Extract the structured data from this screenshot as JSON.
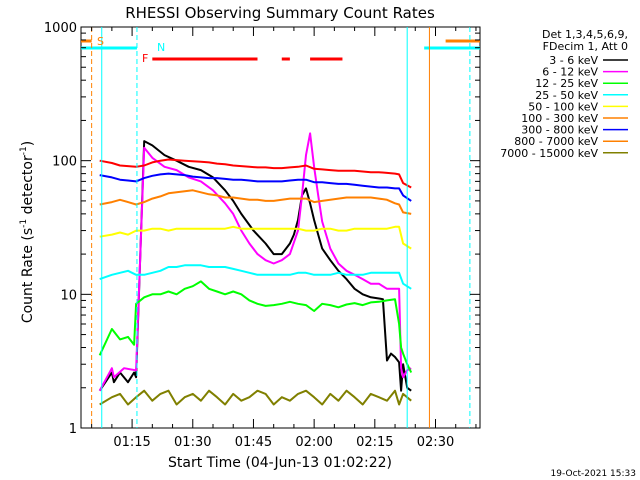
{
  "chart_data": {
    "type": "line",
    "title": "RHESSI Observing Summary Count Rates",
    "xlabel": "Start Time (04-Jun-13 01:02:22)",
    "ylabel_main": "Count Rate (s",
    "ylabel_sup1": "-1",
    "ylabel_mid": " detector",
    "ylabel_sup2": "-1",
    "ylabel_end": ")",
    "yscale": "log",
    "ylim": [
      1,
      1000
    ],
    "xlim_minutes": [
      62.37,
      161.0
    ],
    "x_ticks": [
      {
        "m": 75,
        "label": "01:15"
      },
      {
        "m": 90,
        "label": "01:30"
      },
      {
        "m": 105,
        "label": "01:45"
      },
      {
        "m": 120,
        "label": "02:00"
      },
      {
        "m": 135,
        "label": "02:15"
      },
      {
        "m": 150,
        "label": "02:30"
      }
    ],
    "y_ticks": [
      {
        "v": 1,
        "label": "1"
      },
      {
        "v": 10,
        "label": "10"
      },
      {
        "v": 100,
        "label": "100"
      },
      {
        "v": 1000,
        "label": "1000"
      }
    ],
    "legend_header": [
      "Det 1,3,4,5,6,9,",
      "FDecim 1, Att 0"
    ],
    "series": [
      {
        "name": "3 - 6 keV",
        "color": "#000000",
        "x": [
          67,
          70,
          70.5,
          72,
          74,
          75.5,
          76,
          78,
          80,
          83,
          86,
          89,
          92,
          95,
          98,
          100,
          102,
          105,
          108,
          110,
          112,
          114,
          115,
          116,
          117,
          118,
          119,
          120,
          121,
          122,
          124,
          126,
          128,
          130,
          132,
          134,
          136,
          137,
          138,
          139,
          140,
          141,
          141.5,
          142,
          143,
          144
        ],
        "y": [
          1.9,
          2.6,
          2.2,
          2.6,
          2.2,
          2.6,
          2.4,
          140,
          130,
          110,
          100,
          90,
          85,
          75,
          60,
          50,
          40,
          30,
          24,
          20,
          20,
          24,
          28,
          36,
          55,
          62,
          48,
          36,
          28,
          22,
          18,
          15,
          13,
          11,
          10,
          9.5,
          9.3,
          9.2,
          3.2,
          3.6,
          3.4,
          3.1,
          1.9,
          3.0,
          2.0,
          1.9
        ]
      },
      {
        "name": "6 - 12 keV",
        "color": "#ff00ff",
        "x": [
          67,
          70,
          70.5,
          73,
          76,
          78,
          80,
          83,
          86,
          89,
          92,
          95,
          98,
          100,
          102,
          104,
          106,
          108,
          110,
          112,
          114,
          116,
          117,
          118,
          119,
          120,
          121,
          122,
          124,
          126,
          128,
          130,
          132,
          134,
          136,
          138,
          140,
          141,
          141.5,
          142,
          143,
          144
        ],
        "y": [
          1.9,
          2.8,
          2.4,
          2.8,
          2.7,
          125,
          105,
          90,
          85,
          75,
          70,
          60,
          48,
          40,
          30,
          24,
          20,
          18,
          17,
          18,
          20,
          30,
          55,
          110,
          160,
          90,
          55,
          35,
          22,
          17,
          15,
          14,
          13,
          12,
          12,
          11,
          11,
          11,
          2.8,
          2.4,
          2.7,
          2.8
        ]
      },
      {
        "name": "12 - 25 keV",
        "color": "#00ff00",
        "x": [
          67,
          70,
          72,
          74,
          75.5,
          76,
          78,
          80,
          82,
          84,
          86,
          88,
          90,
          92,
          94,
          96,
          98,
          100,
          102,
          104,
          106,
          108,
          110,
          112,
          114,
          116,
          118,
          120,
          122,
          124,
          126,
          128,
          130,
          132,
          134,
          136,
          138,
          140,
          141,
          141.5,
          142,
          143,
          144
        ],
        "y": [
          3.5,
          5.5,
          4.6,
          4.8,
          4.2,
          8.5,
          9.5,
          10,
          10,
          10.5,
          10,
          11,
          11.5,
          12.5,
          11,
          10.5,
          10,
          10.5,
          10,
          9,
          8.5,
          8.2,
          8.3,
          8.5,
          8.8,
          8.5,
          8.3,
          7.5,
          8.5,
          8.3,
          8,
          8.4,
          8.6,
          8.3,
          8.7,
          8.8,
          9,
          9.2,
          6,
          4,
          3.6,
          3.0,
          2.6
        ]
      },
      {
        "name": "25 - 50 keV",
        "color": "#00ffff",
        "x": [
          67,
          70,
          72,
          74,
          76,
          78,
          80,
          82,
          84,
          86,
          88,
          90,
          92,
          94,
          96,
          98,
          100,
          102,
          104,
          106,
          108,
          110,
          112,
          114,
          116,
          118,
          120,
          122,
          124,
          126,
          128,
          130,
          132,
          134,
          136,
          138,
          140,
          141,
          142,
          144
        ],
        "y": [
          13,
          14,
          14.5,
          15,
          14,
          14,
          14.5,
          15,
          16,
          16,
          16.5,
          16.5,
          16.5,
          16,
          16,
          16,
          15.5,
          15,
          14.5,
          14,
          14,
          14,
          14,
          14,
          14.5,
          14.5,
          14,
          14,
          14,
          14.5,
          14,
          14,
          14,
          14.5,
          14.5,
          14.5,
          14.5,
          14.5,
          12,
          11
        ]
      },
      {
        "name": "50 - 100 keV",
        "color": "#ffff00",
        "x": [
          67,
          70,
          72,
          74,
          76,
          78,
          80,
          82,
          84,
          86,
          88,
          90,
          92,
          94,
          96,
          98,
          100,
          102,
          104,
          106,
          108,
          110,
          112,
          114,
          116,
          118,
          120,
          122,
          124,
          126,
          128,
          130,
          132,
          134,
          136,
          138,
          140,
          141,
          142,
          144
        ],
        "y": [
          27,
          28,
          29,
          28,
          30,
          30,
          31,
          31,
          30,
          31,
          31,
          31,
          31,
          31,
          31,
          31,
          32,
          31,
          31,
          31,
          31,
          31,
          31,
          31,
          31,
          30,
          30,
          31,
          31,
          30,
          30,
          31,
          31,
          31,
          31,
          31,
          32,
          32,
          24,
          22
        ]
      },
      {
        "name": "100 - 300 keV",
        "color": "#ff8000",
        "x": [
          67,
          70,
          72,
          74,
          76,
          78,
          80,
          82,
          84,
          86,
          88,
          90,
          92,
          94,
          96,
          98,
          100,
          102,
          104,
          106,
          108,
          110,
          112,
          114,
          116,
          118,
          120,
          122,
          124,
          126,
          128,
          130,
          132,
          134,
          136,
          138,
          140,
          141,
          142,
          144
        ],
        "y": [
          47,
          49,
          51,
          49,
          47,
          49,
          52,
          54,
          57,
          58,
          59,
          60,
          58,
          56,
          55,
          53,
          53,
          52,
          51,
          51,
          50,
          50,
          51,
          52,
          52,
          52,
          49,
          50,
          51,
          52,
          53,
          53,
          53,
          53,
          52,
          51,
          48,
          47,
          41,
          40
        ]
      },
      {
        "name": "300 - 800 keV",
        "color": "#0000ff",
        "x": [
          67,
          70,
          72,
          74,
          76,
          78,
          80,
          82,
          84,
          86,
          88,
          90,
          92,
          94,
          96,
          98,
          100,
          102,
          104,
          106,
          108,
          110,
          112,
          114,
          116,
          118,
          120,
          122,
          124,
          126,
          128,
          130,
          132,
          134,
          136,
          138,
          140,
          141,
          142,
          144
        ],
        "y": [
          78,
          75,
          72,
          71,
          70,
          74,
          77,
          79,
          80,
          79,
          78,
          76,
          75,
          74,
          74,
          73,
          72,
          72,
          71,
          70,
          70,
          70,
          70,
          71,
          72,
          72,
          69,
          69,
          68,
          67,
          67,
          66,
          65,
          64,
          63,
          63,
          62,
          62,
          55,
          50
        ]
      },
      {
        "name": "800 - 7000 keV",
        "color": "#ff8000",
        "x": [],
        "y": []
      },
      {
        "name": "7000 - 15000 keV",
        "color": "#808000",
        "x": [
          67,
          70,
          72,
          74,
          76,
          78,
          80,
          82,
          84,
          86,
          88,
          90,
          92,
          94,
          96,
          98,
          100,
          102,
          104,
          106,
          108,
          110,
          112,
          114,
          116,
          118,
          120,
          122,
          124,
          126,
          128,
          130,
          132,
          134,
          136,
          138,
          140,
          141,
          142,
          144
        ],
        "y": [
          1.5,
          1.7,
          1.8,
          1.5,
          1.7,
          1.9,
          1.6,
          1.8,
          1.9,
          1.5,
          1.7,
          1.8,
          1.6,
          1.9,
          1.7,
          1.5,
          1.8,
          1.6,
          1.7,
          1.9,
          1.8,
          1.5,
          1.7,
          1.6,
          1.8,
          1.9,
          1.7,
          1.5,
          1.8,
          1.6,
          1.9,
          1.7,
          1.5,
          1.8,
          1.7,
          1.6,
          1.9,
          1.5,
          1.8,
          1.6
        ]
      },
      {
        "name": "",
        "color": "#ff0000",
        "x": [
          67,
          70,
          72,
          74,
          76,
          78,
          80,
          82,
          84,
          86,
          88,
          90,
          92,
          94,
          96,
          98,
          100,
          102,
          104,
          106,
          108,
          110,
          112,
          114,
          116,
          118,
          120,
          122,
          124,
          126,
          128,
          130,
          132,
          134,
          136,
          138,
          140,
          141,
          142,
          144
        ],
        "y": [
          100,
          96,
          92,
          91,
          90,
          92,
          97,
          100,
          102,
          101,
          100,
          99,
          98,
          97,
          95,
          94,
          92,
          91,
          90,
          89,
          89,
          88,
          88,
          89,
          90,
          92,
          87,
          86,
          85,
          84,
          84,
          84,
          83,
          82,
          82,
          81,
          80,
          79,
          68,
          63
        ]
      }
    ],
    "flag_labels": {
      "s": "S",
      "n": "N",
      "f": "F"
    },
    "flags": {
      "saa_color": "#ff8000",
      "night_color": "#00ffff",
      "flare_color": "#ff0000",
      "saa_segments": [
        [
          62.37,
          65.0
        ],
        [
          152.5,
          161.0
        ]
      ],
      "night_segments": [
        [
          62.37,
          76.2
        ],
        [
          147.2,
          161.0
        ]
      ],
      "flare_segments": [
        [
          80.0,
          106.0
        ],
        [
          112.0,
          114.0
        ],
        [
          119.0,
          127.0
        ]
      ],
      "saa_lines": [
        65.0,
        148.5
      ],
      "night_lines": [
        67.5,
        76.2,
        143.0,
        158.5
      ]
    }
  },
  "footer": {
    "timestamp": "19-Oct-2021 15:33"
  }
}
